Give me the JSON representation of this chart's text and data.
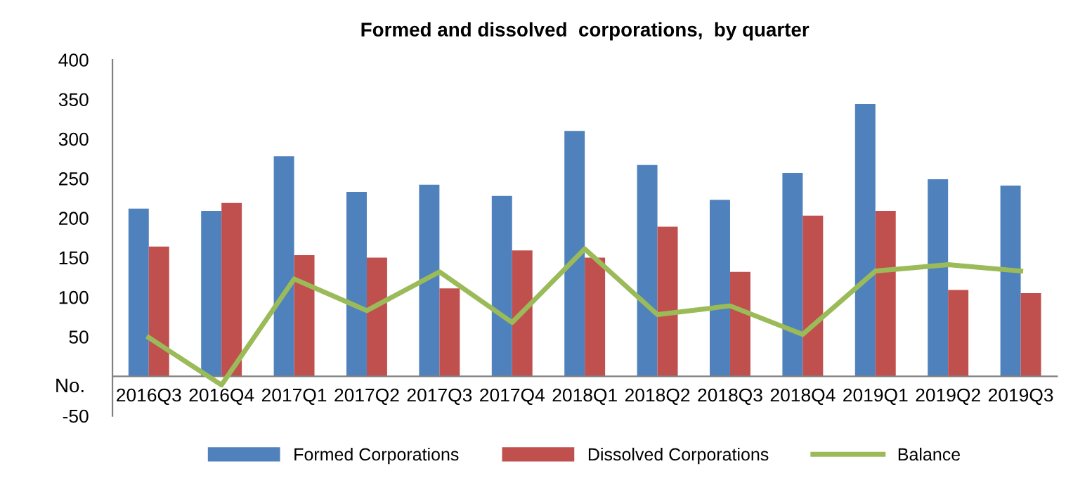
{
  "chart_data": {
    "type": "bar",
    "title": "Formed and dissolved  corporations,  by quarter",
    "ylabel": "No.",
    "categories": [
      "2016Q3",
      "2016Q4",
      "2017Q1",
      "2017Q2",
      "2017Q3",
      "2017Q4",
      "2018Q1",
      "2018Q2",
      "2018Q3",
      "2018Q4",
      "2019Q1",
      "2019Q2",
      "2019Q3"
    ],
    "series": [
      {
        "name": "Formed Corporations",
        "color": "#4f81bd",
        "values": [
          212,
          209,
          278,
          233,
          242,
          228,
          310,
          267,
          223,
          257,
          344,
          249,
          241
        ]
      },
      {
        "name": "Dissolved Corporations",
        "color": "#c0504d",
        "values": [
          164,
          219,
          153,
          150,
          111,
          159,
          150,
          189,
          132,
          203,
          209,
          109,
          105
        ]
      },
      {
        "name": "Balance",
        "type": "line",
        "color": "#9bbb59",
        "values": [
          49,
          -11,
          123,
          83,
          132,
          68,
          161,
          78,
          89,
          53,
          133,
          141,
          133
        ]
      }
    ],
    "ylim": [
      -50,
      400
    ],
    "yticks": [
      -50,
      50,
      100,
      150,
      200,
      250,
      300,
      350,
      400
    ],
    "grid": false,
    "legend": "bottom"
  }
}
